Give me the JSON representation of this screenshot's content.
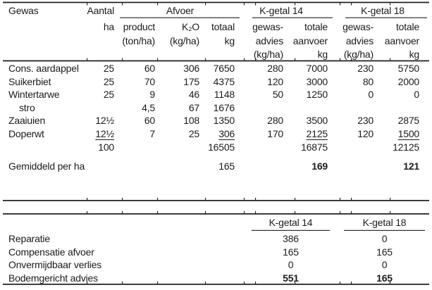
{
  "colors": {
    "text": "#1b1b1b",
    "background": "#ffffff"
  },
  "table1": {
    "headers": {
      "gewas": "Gewas",
      "aantal_line1": "Aantal",
      "aantal_line2": "ha",
      "afvoer_group": "Afvoer",
      "product_line1": "product",
      "product_line2": "(ton/ha)",
      "k2o_line1": "K₂O",
      "k2o_line2": "(kg/ha)",
      "totaal_line1": "totaal",
      "totaal_line2": "kg",
      "kgetal14_group": "K-getal 14",
      "kgetal18_group": "K-getal 18",
      "gewasadvies_line1": "gewas-",
      "gewasadvies_line2": "advies",
      "gewasadvies_line3": "(kg/ha)",
      "totale_line1": "totale",
      "totale_line2": "aanvoer",
      "totale_line3": "kg"
    },
    "rows": [
      {
        "gewas": "Cons. aardappel",
        "aantal": "25",
        "product": "60",
        "k2o": "306",
        "totaal": "7650",
        "advies14": "280",
        "aanvoer14": "7000",
        "advies18": "230",
        "aanvoer18": "5750"
      },
      {
        "gewas": "Suikerbiet",
        "aantal": "25",
        "product": "70",
        "k2o": "175",
        "totaal": "4375",
        "advies14": "120",
        "aanvoer14": "3000",
        "advies18": "80",
        "aanvoer18": "2000"
      },
      {
        "gewas": "Wintertarwe",
        "aantal": "25",
        "product": "9",
        "k2o": "46",
        "totaal": "1148",
        "advies14": "50",
        "aanvoer14": "1250",
        "advies18": "0",
        "aanvoer18": "0"
      },
      {
        "gewas": "stro",
        "aantal": "",
        "product": "4,5",
        "k2o": "67",
        "totaal": "1676",
        "advies14": "",
        "aanvoer14": "",
        "advies18": "",
        "aanvoer18": ""
      },
      {
        "gewas": "Zaaiuien",
        "aantal": "12½",
        "product": "60",
        "k2o": "108",
        "totaal": "1350",
        "advies14": "280",
        "aanvoer14": "3500",
        "advies18": "230",
        "aanvoer18": "2875"
      },
      {
        "gewas": "Doperwt",
        "aantal": "12½",
        "product": "7",
        "k2o": "25",
        "totaal": "306",
        "advies14": "170",
        "aanvoer14": "2125",
        "advies18": "120",
        "aanvoer18": "1500"
      }
    ],
    "totals": {
      "aantal": "100",
      "totaal": "16505",
      "aanvoer14": "16875",
      "aanvoer18": "12125"
    },
    "average": {
      "label": "Gemiddeld per ha",
      "totaal": "165",
      "aanvoer14": "169",
      "aanvoer18": "121"
    }
  },
  "table2": {
    "header14": "K-getal 14",
    "header18": "K-getal 18",
    "rows": [
      {
        "label": "Reparatie",
        "kgetal14": "386",
        "kgetal18": "0"
      },
      {
        "label": "Compensatie afvoer",
        "kgetal14": "165",
        "kgetal18": "165"
      },
      {
        "label": "Onvermijdbaar verlies",
        "kgetal14": "0",
        "kgetal18": "0"
      },
      {
        "label": "Bodemgericht advies",
        "kgetal14": "551",
        "kgetal18": "165"
      }
    ]
  }
}
